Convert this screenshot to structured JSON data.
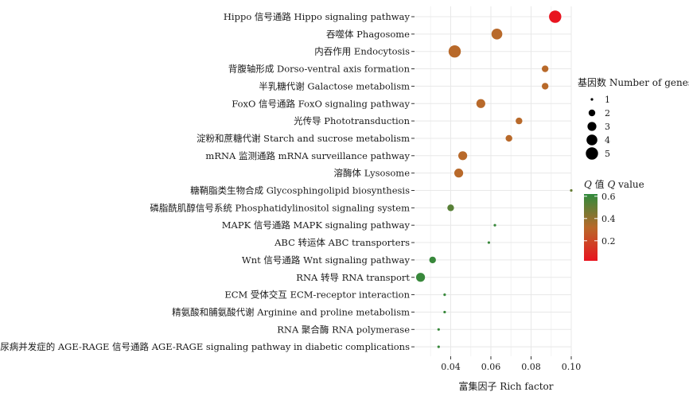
{
  "chart_data": {
    "type": "scatter",
    "xlabel": "富集因子 Rich factor",
    "ylabel": "",
    "xlim": [
      0.022,
      0.1
    ],
    "x_ticks": [
      0.04,
      0.06,
      0.08,
      0.1
    ],
    "x_tick_labels": [
      "0.04",
      "0.06",
      "0.08",
      "0.10"
    ],
    "grid": true,
    "legend_position": "right",
    "pathways": [
      {
        "label": "Hippo 信号通路 Hippo signaling pathway",
        "rich_factor": 0.092,
        "genes": 5,
        "q": 0.02
      },
      {
        "label": "吞噬体 Phagosome",
        "rich_factor": 0.063,
        "genes": 4,
        "q": 0.32
      },
      {
        "label": "内吞作用  Endocytosis",
        "rich_factor": 0.042,
        "genes": 5,
        "q": 0.32
      },
      {
        "label": "背腹轴形成 Dorso-ventral axis formation",
        "rich_factor": 0.087,
        "genes": 2,
        "q": 0.32
      },
      {
        "label": "半乳糖代谢 Galactose metabolism",
        "rich_factor": 0.087,
        "genes": 2,
        "q": 0.32
      },
      {
        "label": "FoxO 信号通路 FoxO signaling pathway",
        "rich_factor": 0.055,
        "genes": 3,
        "q": 0.32
      },
      {
        "label": "光传导 Phototransduction",
        "rich_factor": 0.074,
        "genes": 2,
        "q": 0.32
      },
      {
        "label": "淀粉和蔗糖代谢 Starch and sucrose metabolism",
        "rich_factor": 0.069,
        "genes": 2,
        "q": 0.32
      },
      {
        "label": "mRNA 监测通路 mRNA surveillance pathway",
        "rich_factor": 0.046,
        "genes": 3,
        "q": 0.32
      },
      {
        "label": "溶酶体 Lysosome",
        "rich_factor": 0.044,
        "genes": 3,
        "q": 0.32
      },
      {
        "label": "糖鞘脂类生物合成 Glycosphingolipid biosynthesis",
        "rich_factor": 0.1,
        "genes": 1,
        "q": 0.5
      },
      {
        "label": "磷脂酰肌醇信号系统  Phosphatidylinositol signaling system",
        "rich_factor": 0.04,
        "genes": 2,
        "q": 0.53
      },
      {
        "label": "MAPK 信号通路 MAPK signaling pathway",
        "rich_factor": 0.062,
        "genes": 1,
        "q": 0.6
      },
      {
        "label": "ABC 转运体 ABC transporters",
        "rich_factor": 0.059,
        "genes": 1,
        "q": 0.6
      },
      {
        "label": "Wnt 信号通路 Wnt signaling pathway",
        "rich_factor": 0.031,
        "genes": 2,
        "q": 0.6
      },
      {
        "label": "RNA 转导 RNA transport",
        "rich_factor": 0.025,
        "genes": 3,
        "q": 0.6
      },
      {
        "label": "ECM 受体交互 ECM-receptor interaction",
        "rich_factor": 0.037,
        "genes": 1,
        "q": 0.6
      },
      {
        "label": "精氨酸和脯氨酸代谢 Arginine and proline metabolism",
        "rich_factor": 0.037,
        "genes": 1,
        "q": 0.6
      },
      {
        "label": "RNA 聚合酶 RNA polymerase",
        "rich_factor": 0.034,
        "genes": 1,
        "q": 0.6
      },
      {
        "label": "糖尿病并发症的 AGE-RAGE 信号通路 AGE-RAGE signaling pathway in diabetic complications",
        "rich_factor": 0.034,
        "genes": 1,
        "q": 0.6
      }
    ],
    "size_legend": {
      "title": "基因数 Number of genes",
      "values": [
        1,
        2,
        3,
        4,
        5
      ],
      "labels": [
        "1",
        "2",
        "3",
        "4",
        "5"
      ]
    },
    "color_legend": {
      "title_italic": "Q",
      "title_cn": " 值 ",
      "title_italic2": "Q",
      "title_en": " value",
      "range": [
        0.02,
        0.62
      ],
      "ticks": [
        0.2,
        0.4,
        0.6
      ],
      "tick_labels": [
        "0.2",
        "0.4",
        "0.6"
      ],
      "colors": {
        "low": "#e8141f",
        "mid": "#b8692a",
        "high": "#2f8a3c"
      }
    }
  }
}
